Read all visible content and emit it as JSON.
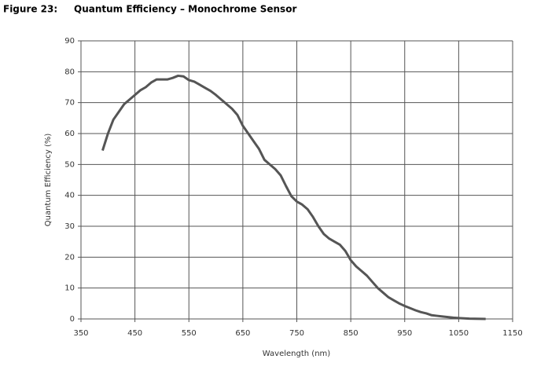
{
  "chart_data": {
    "type": "line",
    "figure_label": "Figure 23:",
    "title": "Quantum Efficiency – Monochrome Sensor",
    "x_label": "Wavelength (nm)",
    "y_label": "Quantum Efficiency (%)",
    "x": [
      390,
      400,
      410,
      420,
      430,
      440,
      450,
      460,
      470,
      480,
      490,
      500,
      510,
      520,
      530,
      540,
      550,
      560,
      570,
      580,
      590,
      600,
      610,
      620,
      630,
      640,
      650,
      660,
      670,
      680,
      690,
      700,
      710,
      720,
      730,
      740,
      750,
      760,
      770,
      780,
      790,
      800,
      810,
      820,
      830,
      840,
      850,
      860,
      870,
      880,
      890,
      900,
      910,
      920,
      930,
      940,
      950,
      960,
      970,
      980,
      990,
      1000,
      1010,
      1020,
      1030,
      1040,
      1050,
      1060,
      1070,
      1080,
      1090,
      1100
    ],
    "series": [
      {
        "name": "Quantum Efficiency",
        "color": "#555555",
        "values": [
          54.5,
          60,
          64.5,
          67,
          69.5,
          71,
          72.5,
          74,
          75,
          76.5,
          77.5,
          77.5,
          77.5,
          78,
          78.7,
          78.5,
          77.3,
          76.8,
          75.8,
          74.8,
          73.8,
          72.5,
          71,
          69.5,
          68,
          66,
          62.5,
          60,
          57.5,
          55,
          51.5,
          50,
          48.5,
          46.5,
          43,
          39.7,
          38,
          37,
          35.5,
          33,
          30,
          27.5,
          26,
          25,
          24,
          22,
          19,
          17,
          15.5,
          14,
          12,
          10,
          8.5,
          7,
          6,
          5,
          4.2,
          3.5,
          2.8,
          2.2,
          1.8,
          1.2,
          1,
          0.8,
          0.6,
          0.4,
          0.3,
          0.2,
          0.1,
          0.05,
          0.02,
          0
        ]
      }
    ],
    "xlim": [
      350,
      1150
    ],
    "xticks": [
      350,
      450,
      550,
      650,
      750,
      850,
      950,
      1050,
      1150
    ],
    "ylim": [
      0,
      90
    ],
    "yticks": [
      0,
      10,
      20,
      30,
      40,
      50,
      60,
      70,
      80,
      90
    ],
    "grid": true
  }
}
